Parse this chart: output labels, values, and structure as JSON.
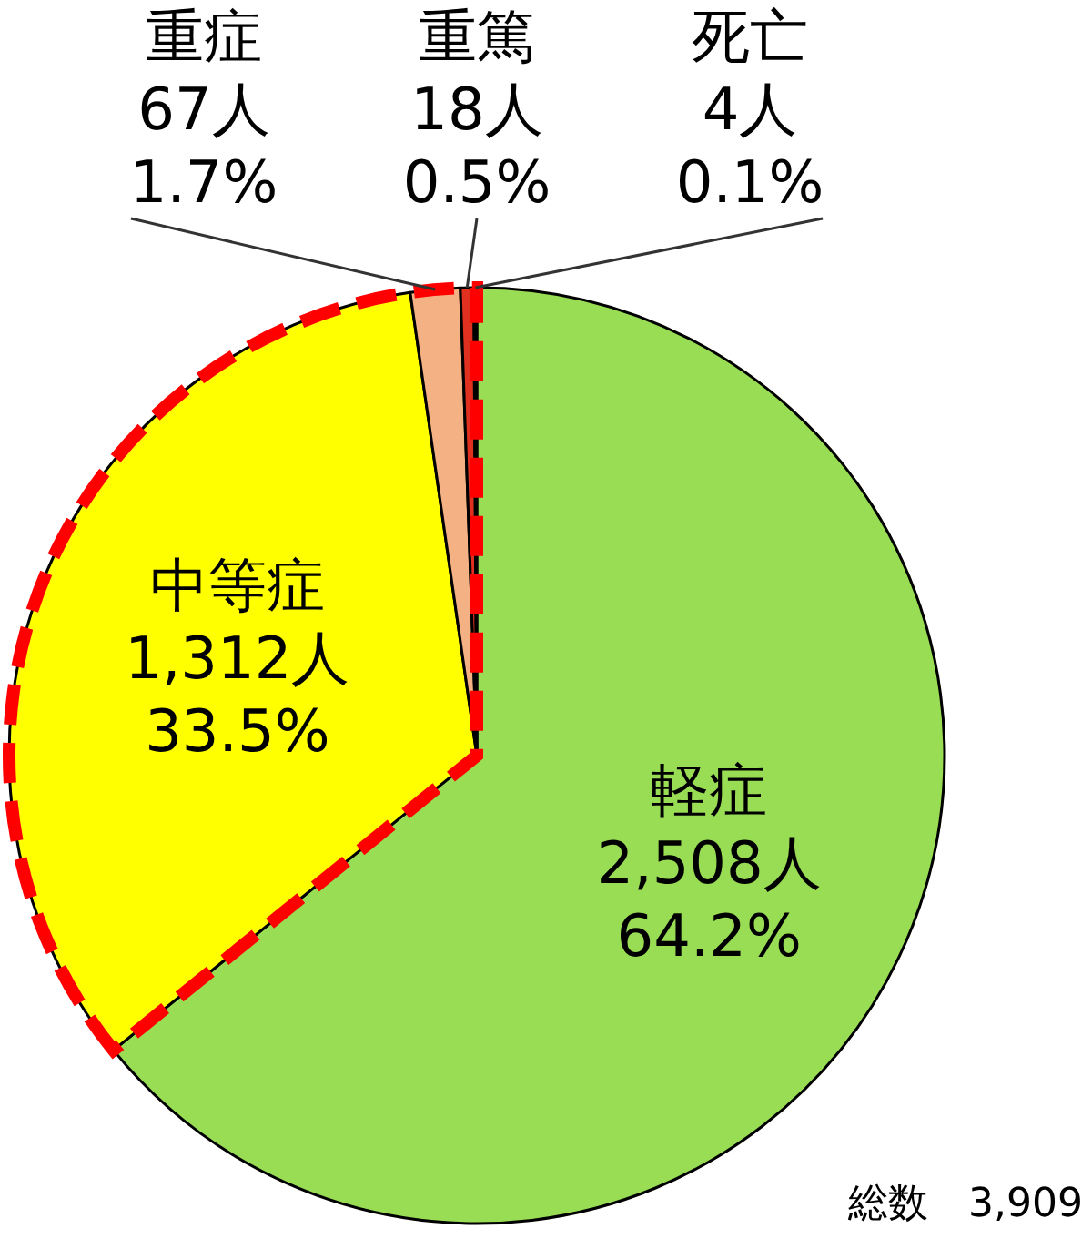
{
  "chart_data": {
    "type": "pie",
    "categories": [
      "軽症",
      "中等症",
      "重症",
      "重篤",
      "死亡"
    ],
    "values": [
      2508,
      1312,
      67,
      18,
      4
    ],
    "colors": [
      "#99dd55",
      "#ffff00",
      "#f4b183",
      "#e03020",
      "#603010"
    ],
    "value_labels": [
      "2,508人\n64.2%",
      "1,312人\n33.5%",
      "67人\n1.7%",
      "18人\n0.5%",
      "4人\n0.1%"
    ],
    "annotations": [
      "総数　3,909"
    ]
  }
}
